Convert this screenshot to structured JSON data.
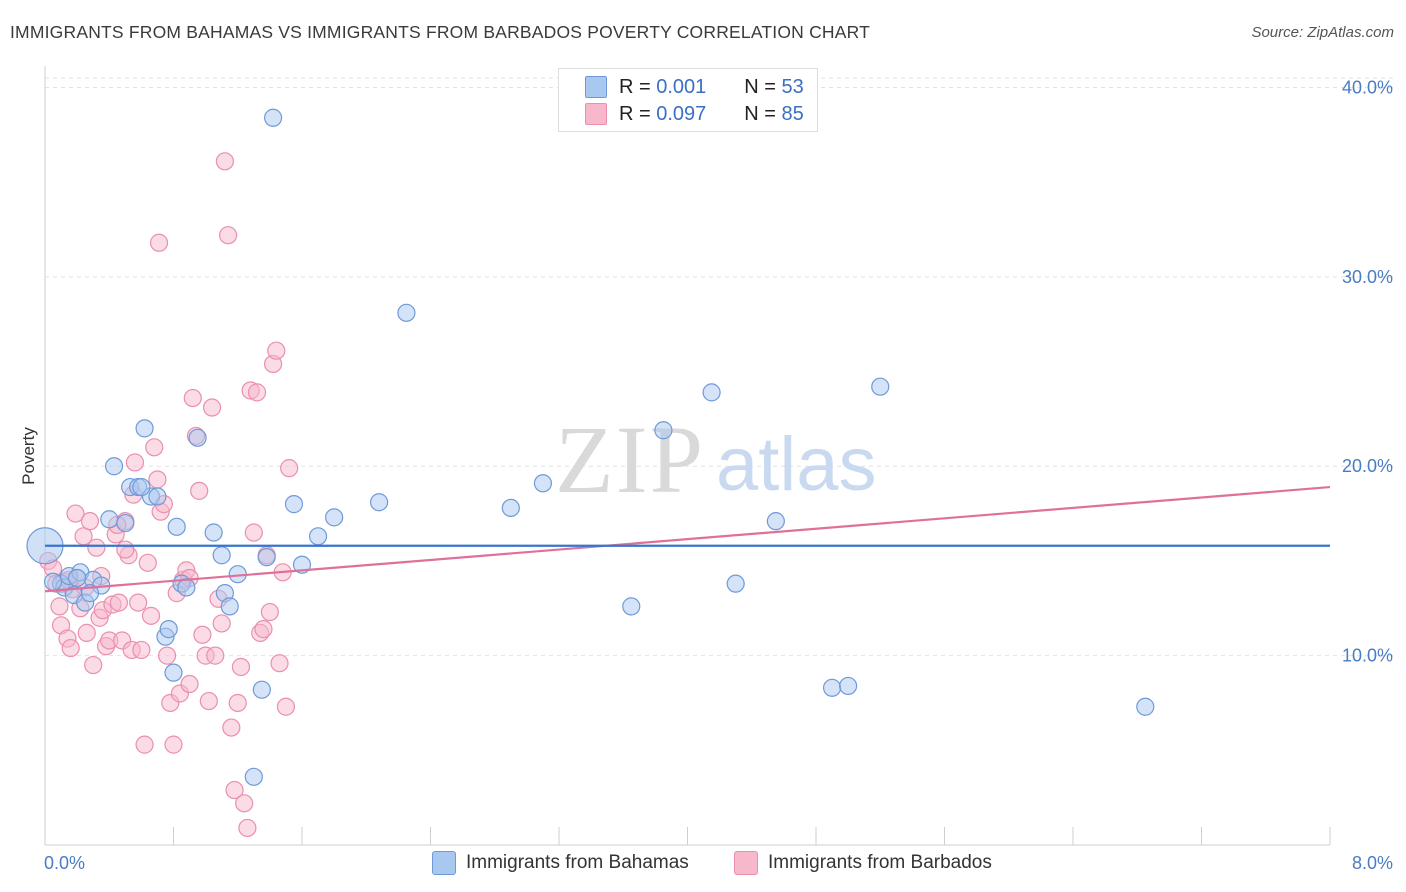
{
  "header": {
    "title": "IMMIGRANTS FROM BAHAMAS VS IMMIGRANTS FROM BARBADOS POVERTY CORRELATION CHART",
    "source": "Source: ZipAtlas.com"
  },
  "legend": {
    "rows": [
      {
        "r_label": "R = ",
        "r_value": "0.001",
        "n_label": "N = ",
        "n_value": "53"
      },
      {
        "r_label": "R = ",
        "r_value": "0.097",
        "n_label": "N = ",
        "n_value": "85"
      }
    ]
  },
  "bottom_legend": {
    "bahamas": "Immigrants from Bahamas",
    "barbados": "Immigrants from Barbados"
  },
  "watermark": {
    "zip": "ZIP",
    "atlas": "atlas"
  },
  "colors": {
    "bahamas_fill": "#a9c8f0",
    "bahamas_stroke": "#6f9ad8",
    "bahamas_line": "#3a74cc",
    "barbados_fill": "#f7b8cc",
    "barbados_stroke": "#ea8fae",
    "barbados_line": "#e0709a",
    "tick_text": "#4a7cc4"
  },
  "chart_data": {
    "type": "scatter",
    "title": "IMMIGRANTS FROM BAHAMAS VS IMMIGRANTS FROM BARBADOS POVERTY CORRELATION CHART",
    "xlabel": "",
    "ylabel": "Poverty",
    "xlim": [
      0,
      8
    ],
    "ylim": [
      0,
      40.5
    ],
    "x_tick_labels": [
      "0.0%",
      "8.0%"
    ],
    "y_ticks": [
      10,
      20,
      30,
      40
    ],
    "y_tick_labels": [
      "10.0%",
      "20.0%",
      "30.0%",
      "40.0%"
    ],
    "grid": true,
    "legend_position": "top-center",
    "series": [
      {
        "name": "Immigrants from Bahamas",
        "color": "#a9c8f0",
        "trend": {
          "x": [
            0,
            8
          ],
          "y": [
            15.8,
            15.8
          ]
        },
        "points": [
          [
            0.1,
            13.8
          ],
          [
            0.12,
            13.6
          ],
          [
            0.15,
            14.2
          ],
          [
            0.18,
            13.2
          ],
          [
            0.22,
            14.4
          ],
          [
            0.25,
            12.8
          ],
          [
            0.3,
            14.0
          ],
          [
            0.35,
            13.7
          ],
          [
            0.4,
            17.2
          ],
          [
            0.43,
            20.0
          ],
          [
            0.5,
            17.0
          ],
          [
            0.53,
            18.9
          ],
          [
            0.58,
            18.9
          ],
          [
            0.62,
            22.0
          ],
          [
            0.66,
            18.4
          ],
          [
            0.7,
            18.4
          ],
          [
            0.75,
            11.0
          ],
          [
            0.77,
            11.4
          ],
          [
            0.82,
            16.8
          ],
          [
            0.85,
            13.8
          ],
          [
            0.88,
            13.6
          ],
          [
            0.95,
            21.5
          ],
          [
            1.05,
            16.5
          ],
          [
            1.1,
            15.3
          ],
          [
            1.12,
            13.3
          ],
          [
            1.15,
            12.6
          ],
          [
            1.2,
            14.3
          ],
          [
            1.35,
            8.2
          ],
          [
            1.38,
            15.2
          ],
          [
            1.3,
            3.6
          ],
          [
            1.42,
            38.4
          ],
          [
            1.55,
            18.0
          ],
          [
            1.6,
            14.8
          ],
          [
            1.7,
            16.3
          ],
          [
            1.8,
            17.3
          ],
          [
            2.08,
            18.1
          ],
          [
            2.25,
            28.1
          ],
          [
            2.9,
            17.8
          ],
          [
            3.1,
            19.1
          ],
          [
            3.65,
            12.6
          ],
          [
            3.85,
            21.9
          ],
          [
            4.15,
            23.9
          ],
          [
            4.3,
            13.8
          ],
          [
            4.55,
            17.1
          ],
          [
            4.9,
            8.3
          ],
          [
            5.0,
            8.4
          ],
          [
            5.2,
            24.2
          ],
          [
            6.85,
            7.3
          ],
          [
            0.6,
            18.9
          ],
          [
            0.8,
            9.1
          ],
          [
            0.05,
            13.9
          ],
          [
            0.28,
            13.3
          ],
          [
            0.2,
            14.1
          ]
        ]
      },
      {
        "name": "Immigrants from Barbados",
        "color": "#f7b8cc",
        "trend": {
          "x": [
            0,
            8
          ],
          "y": [
            13.4,
            18.9
          ]
        },
        "points": [
          [
            0.02,
            15.0
          ],
          [
            0.05,
            14.6
          ],
          [
            0.07,
            13.8
          ],
          [
            0.09,
            12.6
          ],
          [
            0.1,
            11.6
          ],
          [
            0.12,
            13.9
          ],
          [
            0.14,
            10.9
          ],
          [
            0.16,
            10.4
          ],
          [
            0.17,
            13.5
          ],
          [
            0.19,
            17.5
          ],
          [
            0.2,
            14.1
          ],
          [
            0.22,
            12.5
          ],
          [
            0.24,
            16.3
          ],
          [
            0.26,
            11.2
          ],
          [
            0.28,
            17.1
          ],
          [
            0.3,
            9.5
          ],
          [
            0.32,
            15.7
          ],
          [
            0.34,
            12.0
          ],
          [
            0.36,
            12.4
          ],
          [
            0.38,
            10.5
          ],
          [
            0.4,
            10.8
          ],
          [
            0.42,
            12.7
          ],
          [
            0.44,
            16.4
          ],
          [
            0.46,
            12.8
          ],
          [
            0.48,
            10.8
          ],
          [
            0.5,
            17.1
          ],
          [
            0.52,
            15.3
          ],
          [
            0.54,
            10.3
          ],
          [
            0.56,
            20.2
          ],
          [
            0.58,
            12.8
          ],
          [
            0.6,
            10.3
          ],
          [
            0.62,
            5.3
          ],
          [
            0.64,
            14.9
          ],
          [
            0.66,
            12.1
          ],
          [
            0.68,
            21.0
          ],
          [
            0.7,
            19.3
          ],
          [
            0.72,
            17.6
          ],
          [
            0.74,
            18.0
          ],
          [
            0.76,
            10.0
          ],
          [
            0.78,
            7.5
          ],
          [
            0.8,
            5.3
          ],
          [
            0.82,
            13.3
          ],
          [
            0.84,
            8.0
          ],
          [
            0.86,
            14.0
          ],
          [
            0.88,
            14.5
          ],
          [
            0.9,
            8.5
          ],
          [
            0.92,
            23.6
          ],
          [
            0.94,
            21.6
          ],
          [
            0.96,
            18.7
          ],
          [
            0.98,
            11.1
          ],
          [
            1.0,
            10.0
          ],
          [
            1.02,
            7.6
          ],
          [
            1.04,
            23.1
          ],
          [
            1.06,
            10.0
          ],
          [
            1.08,
            13.0
          ],
          [
            1.1,
            11.7
          ],
          [
            1.12,
            36.1
          ],
          [
            1.14,
            32.2
          ],
          [
            1.16,
            6.2
          ],
          [
            1.18,
            2.9
          ],
          [
            1.2,
            7.5
          ],
          [
            1.22,
            9.4
          ],
          [
            1.24,
            2.2
          ],
          [
            1.26,
            0.9
          ],
          [
            1.28,
            24.0
          ],
          [
            1.3,
            16.5
          ],
          [
            1.32,
            23.9
          ],
          [
            1.34,
            11.2
          ],
          [
            1.36,
            11.4
          ],
          [
            1.38,
            15.3
          ],
          [
            1.4,
            12.3
          ],
          [
            1.42,
            25.4
          ],
          [
            1.44,
            26.1
          ],
          [
            1.46,
            9.6
          ],
          [
            1.48,
            14.4
          ],
          [
            1.5,
            7.3
          ],
          [
            1.52,
            19.9
          ],
          [
            0.71,
            31.8
          ],
          [
            0.55,
            18.5
          ],
          [
            0.45,
            16.9
          ],
          [
            0.35,
            14.2
          ],
          [
            0.25,
            13.6
          ],
          [
            0.15,
            14.0
          ],
          [
            0.5,
            15.6
          ],
          [
            0.9,
            14.1
          ]
        ]
      }
    ]
  }
}
